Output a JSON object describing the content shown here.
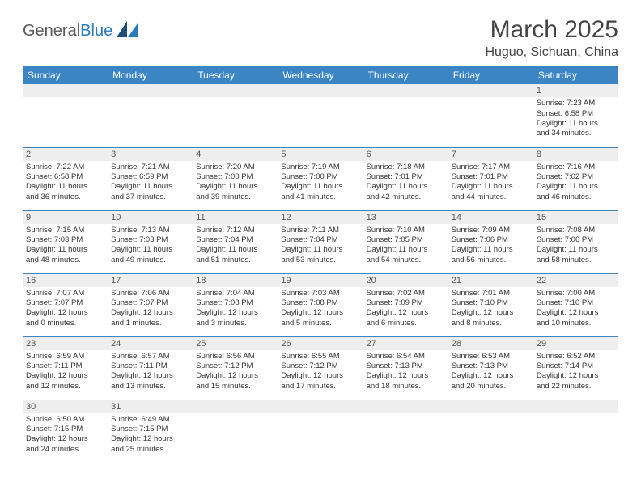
{
  "brand": {
    "part1": "General",
    "part2": "Blue"
  },
  "title": "March 2025",
  "location": "Huguo, Sichuan, China",
  "colors": {
    "header_bg": "#3b85c4",
    "header_text": "#ffffff",
    "daynum_bg": "#eeeeee",
    "border": "#3b85c4",
    "body_text": "#333333",
    "brand_gray": "#5a5a5a",
    "brand_blue": "#2a7ab8"
  },
  "day_headers": [
    "Sunday",
    "Monday",
    "Tuesday",
    "Wednesday",
    "Thursday",
    "Friday",
    "Saturday"
  ],
  "weeks": [
    [
      null,
      null,
      null,
      null,
      null,
      null,
      {
        "n": "1",
        "sr": "7:23 AM",
        "ss": "6:58 PM",
        "dh": "11",
        "dm": "34"
      }
    ],
    [
      {
        "n": "2",
        "sr": "7:22 AM",
        "ss": "6:58 PM",
        "dh": "11",
        "dm": "36"
      },
      {
        "n": "3",
        "sr": "7:21 AM",
        "ss": "6:59 PM",
        "dh": "11",
        "dm": "37"
      },
      {
        "n": "4",
        "sr": "7:20 AM",
        "ss": "7:00 PM",
        "dh": "11",
        "dm": "39"
      },
      {
        "n": "5",
        "sr": "7:19 AM",
        "ss": "7:00 PM",
        "dh": "11",
        "dm": "41"
      },
      {
        "n": "6",
        "sr": "7:18 AM",
        "ss": "7:01 PM",
        "dh": "11",
        "dm": "42"
      },
      {
        "n": "7",
        "sr": "7:17 AM",
        "ss": "7:01 PM",
        "dh": "11",
        "dm": "44"
      },
      {
        "n": "8",
        "sr": "7:16 AM",
        "ss": "7:02 PM",
        "dh": "11",
        "dm": "46"
      }
    ],
    [
      {
        "n": "9",
        "sr": "7:15 AM",
        "ss": "7:03 PM",
        "dh": "11",
        "dm": "48"
      },
      {
        "n": "10",
        "sr": "7:13 AM",
        "ss": "7:03 PM",
        "dh": "11",
        "dm": "49"
      },
      {
        "n": "11",
        "sr": "7:12 AM",
        "ss": "7:04 PM",
        "dh": "11",
        "dm": "51"
      },
      {
        "n": "12",
        "sr": "7:11 AM",
        "ss": "7:04 PM",
        "dh": "11",
        "dm": "53"
      },
      {
        "n": "13",
        "sr": "7:10 AM",
        "ss": "7:05 PM",
        "dh": "11",
        "dm": "54"
      },
      {
        "n": "14",
        "sr": "7:09 AM",
        "ss": "7:06 PM",
        "dh": "11",
        "dm": "56"
      },
      {
        "n": "15",
        "sr": "7:08 AM",
        "ss": "7:06 PM",
        "dh": "11",
        "dm": "58"
      }
    ],
    [
      {
        "n": "16",
        "sr": "7:07 AM",
        "ss": "7:07 PM",
        "dh": "12",
        "dm": "0"
      },
      {
        "n": "17",
        "sr": "7:06 AM",
        "ss": "7:07 PM",
        "dh": "12",
        "dm": "1"
      },
      {
        "n": "18",
        "sr": "7:04 AM",
        "ss": "7:08 PM",
        "dh": "12",
        "dm": "3"
      },
      {
        "n": "19",
        "sr": "7:03 AM",
        "ss": "7:08 PM",
        "dh": "12",
        "dm": "5"
      },
      {
        "n": "20",
        "sr": "7:02 AM",
        "ss": "7:09 PM",
        "dh": "12",
        "dm": "6"
      },
      {
        "n": "21",
        "sr": "7:01 AM",
        "ss": "7:10 PM",
        "dh": "12",
        "dm": "8"
      },
      {
        "n": "22",
        "sr": "7:00 AM",
        "ss": "7:10 PM",
        "dh": "12",
        "dm": "10"
      }
    ],
    [
      {
        "n": "23",
        "sr": "6:59 AM",
        "ss": "7:11 PM",
        "dh": "12",
        "dm": "12"
      },
      {
        "n": "24",
        "sr": "6:57 AM",
        "ss": "7:11 PM",
        "dh": "12",
        "dm": "13"
      },
      {
        "n": "25",
        "sr": "6:56 AM",
        "ss": "7:12 PM",
        "dh": "12",
        "dm": "15"
      },
      {
        "n": "26",
        "sr": "6:55 AM",
        "ss": "7:12 PM",
        "dh": "12",
        "dm": "17"
      },
      {
        "n": "27",
        "sr": "6:54 AM",
        "ss": "7:13 PM",
        "dh": "12",
        "dm": "18"
      },
      {
        "n": "28",
        "sr": "6:53 AM",
        "ss": "7:13 PM",
        "dh": "12",
        "dm": "20"
      },
      {
        "n": "29",
        "sr": "6:52 AM",
        "ss": "7:14 PM",
        "dh": "12",
        "dm": "22"
      }
    ],
    [
      {
        "n": "30",
        "sr": "6:50 AM",
        "ss": "7:15 PM",
        "dh": "12",
        "dm": "24"
      },
      {
        "n": "31",
        "sr": "6:49 AM",
        "ss": "7:15 PM",
        "dh": "12",
        "dm": "25"
      },
      null,
      null,
      null,
      null,
      null
    ]
  ],
  "labels": {
    "sunrise": "Sunrise:",
    "sunset": "Sunset:",
    "daylight": "Daylight:",
    "hours": "hours",
    "and": "and",
    "minutes": "minutes."
  }
}
